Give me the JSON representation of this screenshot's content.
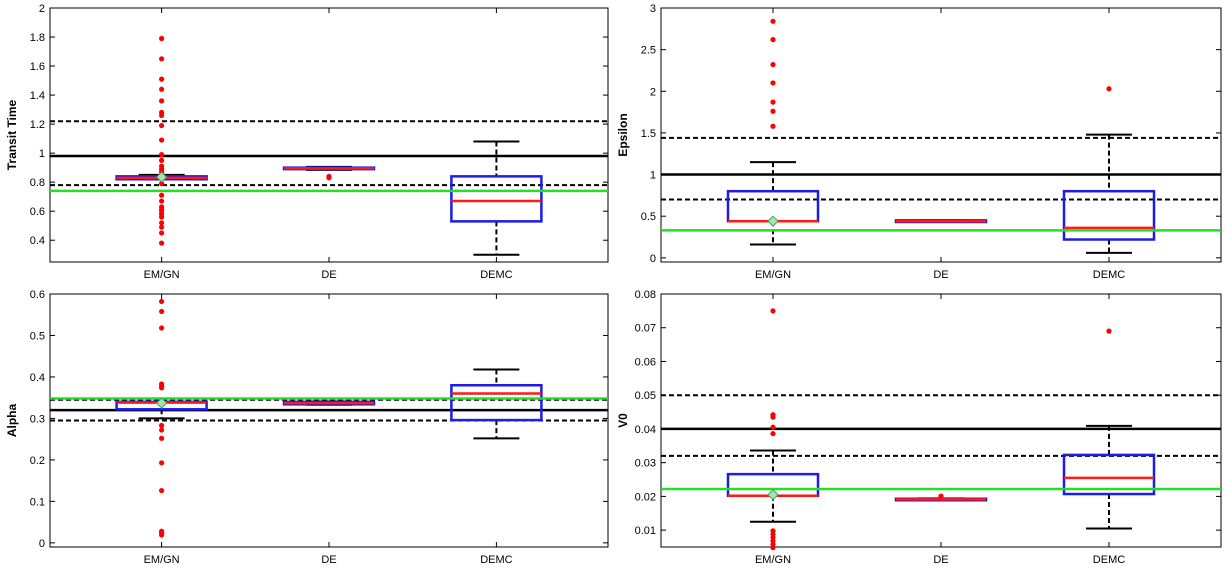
{
  "colors": {
    "box": "#1c1ce6",
    "median": "#ff1a1a",
    "outlier": "#ff0000",
    "reference": "#000000",
    "reference_bounds": "#000000",
    "estimate": "#22e022",
    "marker": "#9ee6b0",
    "whisker": "#000000"
  },
  "chart_data": [
    {
      "type": "box",
      "ylabel": "Transit Time",
      "categories": [
        "EM/GN",
        "DE",
        "DEMC"
      ],
      "ylim": [
        0.25,
        2.0
      ],
      "yticks": [
        0.4,
        0.6,
        0.8,
        1,
        1.2,
        1.4,
        1.6,
        1.8,
        2
      ],
      "ytick_labels": [
        "0.4",
        "0.6",
        "0.8",
        "1",
        "1.2",
        "1.4",
        "1.6",
        "1.8",
        "2"
      ],
      "reference_line": 0.98,
      "reference_bounds": [
        0.78,
        1.22
      ],
      "estimate_line": 0.74,
      "boxes": [
        {
          "q1": 0.82,
          "median": 0.83,
          "q3": 0.84,
          "whisker_low": 0.82,
          "whisker_high": 0.85,
          "marker": 0.835,
          "outliers": [
            1.79,
            1.65,
            1.51,
            1.44,
            1.36,
            1.28,
            1.26,
            1.19,
            1.09,
            0.99,
            0.95,
            0.91,
            0.89,
            0.87,
            0.79,
            0.71,
            0.67,
            0.63,
            0.61,
            0.6,
            0.58,
            0.56,
            0.52,
            0.49,
            0.45,
            0.38
          ]
        },
        {
          "q1": 0.89,
          "median": 0.895,
          "q3": 0.9,
          "whisker_low": 0.885,
          "whisker_high": 0.905,
          "outliers": [
            0.84,
            0.83
          ]
        },
        {
          "q1": 0.53,
          "median": 0.67,
          "q3": 0.84,
          "whisker_low": 0.3,
          "whisker_high": 1.08,
          "outliers": []
        }
      ]
    },
    {
      "type": "box",
      "ylabel": "Epsilon",
      "categories": [
        "EM/GN",
        "DE",
        "DEMC"
      ],
      "ylim": [
        -0.05,
        3.0
      ],
      "yticks": [
        0,
        0.5,
        1,
        1.5,
        2,
        2.5,
        3
      ],
      "ytick_labels": [
        "0",
        "0.5",
        "1",
        "1.5",
        "2",
        "2.5",
        "3"
      ],
      "reference_line": 1.0,
      "reference_bounds": [
        0.7,
        1.44
      ],
      "estimate_line": 0.33,
      "boxes": [
        {
          "q1": 0.44,
          "median": 0.44,
          "q3": 0.8,
          "whisker_low": 0.16,
          "whisker_high": 1.15,
          "marker": 0.44,
          "outliers": [
            2.84,
            2.62,
            2.32,
            2.1,
            1.87,
            1.76,
            1.58
          ]
        },
        {
          "q1": 0.43,
          "median": 0.44,
          "q3": 0.45,
          "whisker_low": 0.43,
          "whisker_high": 0.45,
          "outliers": []
        },
        {
          "q1": 0.22,
          "median": 0.36,
          "q3": 0.8,
          "whisker_low": 0.06,
          "whisker_high": 1.48,
          "outliers": [
            2.03
          ]
        }
      ]
    },
    {
      "type": "box",
      "ylabel": "Alpha",
      "categories": [
        "EM/GN",
        "DE",
        "DEMC"
      ],
      "ylim": [
        -0.01,
        0.6
      ],
      "yticks": [
        0,
        0.1,
        0.2,
        0.3,
        0.4,
        0.5,
        0.6
      ],
      "ytick_labels": [
        "0",
        "0.1",
        "0.2",
        "0.3",
        "0.4",
        "0.5",
        "0.6"
      ],
      "reference_line": 0.32,
      "reference_bounds": [
        0.295,
        0.345
      ],
      "estimate_line": 0.348,
      "boxes": [
        {
          "q1": 0.322,
          "median": 0.338,
          "q3": 0.34,
          "whisker_low": 0.3,
          "whisker_high": 0.34,
          "marker": 0.337,
          "outliers": [
            0.582,
            0.558,
            0.518,
            0.383,
            0.378,
            0.374,
            0.283,
            0.272,
            0.252,
            0.193,
            0.126,
            0.028,
            0.023,
            0.019
          ]
        },
        {
          "q1": 0.334,
          "median": 0.337,
          "q3": 0.34,
          "whisker_low": 0.333,
          "whisker_high": 0.341,
          "outliers": []
        },
        {
          "q1": 0.296,
          "median": 0.36,
          "q3": 0.38,
          "whisker_low": 0.252,
          "whisker_high": 0.418,
          "outliers": []
        }
      ]
    },
    {
      "type": "box",
      "ylabel": "V0",
      "categories": [
        "EM/GN",
        "DE",
        "DEMC"
      ],
      "ylim": [
        0.005,
        0.08
      ],
      "yticks": [
        0.01,
        0.02,
        0.03,
        0.04,
        0.05,
        0.06,
        0.07,
        0.08
      ],
      "ytick_labels": [
        "0.01",
        "0.02",
        "0.03",
        "0.04",
        "0.05",
        "0.06",
        "0.07",
        "0.08"
      ],
      "reference_line": 0.04,
      "reference_bounds": [
        0.032,
        0.05
      ],
      "estimate_line": 0.0222,
      "boxes": [
        {
          "q1": 0.0202,
          "median": 0.0202,
          "q3": 0.0266,
          "whisker_low": 0.0125,
          "whisker_high": 0.0336,
          "marker": 0.0205,
          "outliers": [
            0.075,
            0.0442,
            0.0435,
            0.0405,
            0.0386,
            0.0098,
            0.0088,
            0.0078,
            0.0068,
            0.0058,
            0.0048
          ]
        },
        {
          "q1": 0.0189,
          "median": 0.0191,
          "q3": 0.0193,
          "whisker_low": 0.0188,
          "whisker_high": 0.0194,
          "outliers": [
            0.0201
          ]
        },
        {
          "q1": 0.0207,
          "median": 0.0255,
          "q3": 0.0323,
          "whisker_low": 0.0105,
          "whisker_high": 0.0409,
          "outliers": [
            0.069
          ]
        }
      ]
    }
  ]
}
